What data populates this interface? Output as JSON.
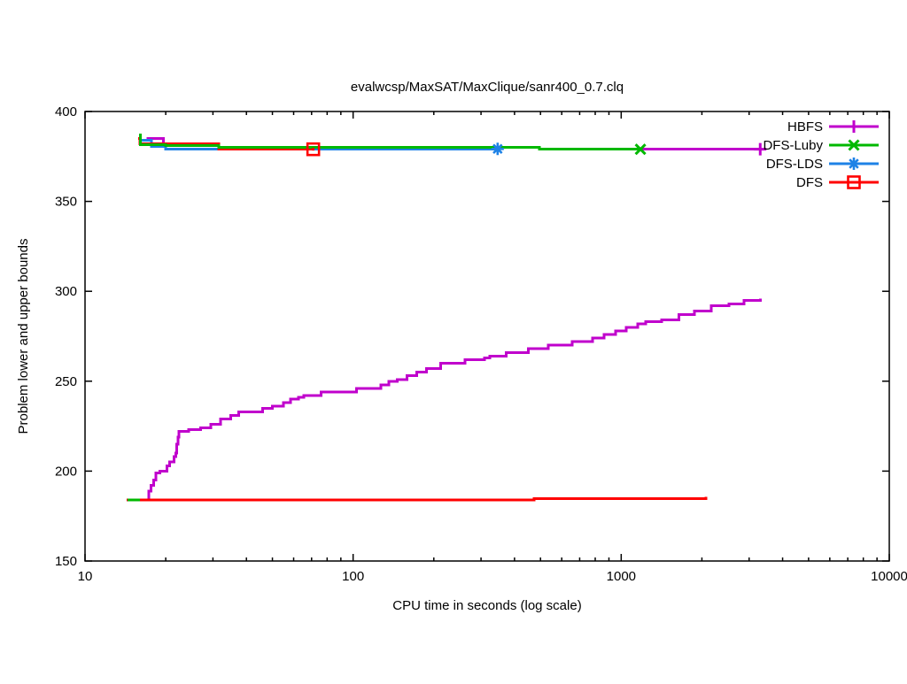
{
  "chart_data": {
    "type": "line",
    "title": "evalwcsp/MaxSAT/MaxClique/sanr400_0.7.clq",
    "xlabel": "CPU time in seconds (log scale)",
    "ylabel": "Problem lower and upper bounds",
    "x_scale": "log10",
    "xlim": [
      10,
      10000
    ],
    "ylim": [
      150,
      400
    ],
    "x_major_ticks": [
      10,
      100,
      1000,
      10000
    ],
    "x_tick_labels": [
      "10",
      "100",
      "1000",
      "10000"
    ],
    "y_ticks": [
      150,
      200,
      250,
      300,
      350,
      400
    ],
    "grid": false,
    "legend_position": "top-right-inside",
    "series": [
      {
        "name": "HBFS",
        "color": "#c000cc",
        "marker": "plus",
        "upper_bound": [
          [
            17,
            385
          ],
          [
            19.6,
            381
          ],
          [
            31.5,
            380
          ],
          [
            495,
            379
          ],
          [
            3300,
            379
          ]
        ],
        "lower_bound": [
          [
            17,
            184
          ],
          [
            17.3,
            189
          ],
          [
            17.6,
            192
          ],
          [
            18,
            195
          ],
          [
            18.4,
            199
          ],
          [
            19,
            200
          ],
          [
            20.2,
            203
          ],
          [
            20.7,
            205
          ],
          [
            21.5,
            208
          ],
          [
            21.8,
            210
          ],
          [
            22,
            215
          ],
          [
            22.2,
            219
          ],
          [
            22.4,
            222
          ],
          [
            24.4,
            223
          ],
          [
            27,
            224
          ],
          [
            29.5,
            226
          ],
          [
            32,
            229
          ],
          [
            35,
            231
          ],
          [
            37.5,
            233
          ],
          [
            46,
            235
          ],
          [
            50,
            236
          ],
          [
            55,
            238
          ],
          [
            58.5,
            240
          ],
          [
            62.5,
            241
          ],
          [
            65.5,
            242
          ],
          [
            76,
            244
          ],
          [
            103,
            246
          ],
          [
            127,
            248
          ],
          [
            136,
            250
          ],
          [
            146,
            251
          ],
          [
            159,
            253
          ],
          [
            173,
            255
          ],
          [
            188,
            257
          ],
          [
            212,
            260
          ],
          [
            261,
            262
          ],
          [
            309,
            263
          ],
          [
            323,
            264
          ],
          [
            373,
            266
          ],
          [
            450,
            268
          ],
          [
            534,
            270
          ],
          [
            656,
            272
          ],
          [
            782,
            274
          ],
          [
            863,
            276
          ],
          [
            954,
            278
          ],
          [
            1044,
            280
          ],
          [
            1151,
            282
          ],
          [
            1235,
            283
          ],
          [
            1415,
            284
          ],
          [
            1643,
            287
          ],
          [
            1873,
            289
          ],
          [
            2170,
            292
          ],
          [
            2519,
            293
          ],
          [
            2870,
            295
          ],
          [
            3300,
            296
          ]
        ],
        "end_marker": {
          "t": 3300,
          "v": 379
        }
      },
      {
        "name": "DFS-Luby",
        "color": "#00b800",
        "marker": "cross",
        "upper_bound": [
          [
            15.9,
            387
          ],
          [
            16.1,
            381.5
          ],
          [
            20,
            381
          ],
          [
            31.5,
            380
          ],
          [
            495,
            379
          ],
          [
            1180,
            379
          ]
        ],
        "lower_bound": [
          [
            14.4,
            184
          ],
          [
            16,
            184
          ]
        ],
        "end_marker": {
          "t": 1180,
          "v": 379
        }
      },
      {
        "name": "DFS-LDS",
        "color": "#1e82e6",
        "marker": "asterisk",
        "upper_bound": [
          [
            15.9,
            386
          ],
          [
            16.1,
            384
          ],
          [
            17.7,
            380.5
          ],
          [
            20,
            379.2
          ],
          [
            346,
            379.2
          ]
        ],
        "lower_bound": [],
        "end_marker": {
          "t": 346,
          "v": 379.2
        }
      },
      {
        "name": "DFS",
        "color": "#ff0000",
        "marker": "square",
        "upper_bound": [
          [
            15.8,
            385
          ],
          [
            16,
            382
          ],
          [
            31.5,
            379
          ],
          [
            71,
            379
          ]
        ],
        "lower_bound": [
          [
            14.3,
            184
          ],
          [
            473,
            184.8
          ],
          [
            2070,
            185.6
          ]
        ],
        "end_marker": {
          "t": 71,
          "v": 379
        }
      }
    ]
  },
  "legend": {
    "entries": [
      "HBFS",
      "DFS-Luby",
      "DFS-LDS",
      "DFS"
    ]
  }
}
